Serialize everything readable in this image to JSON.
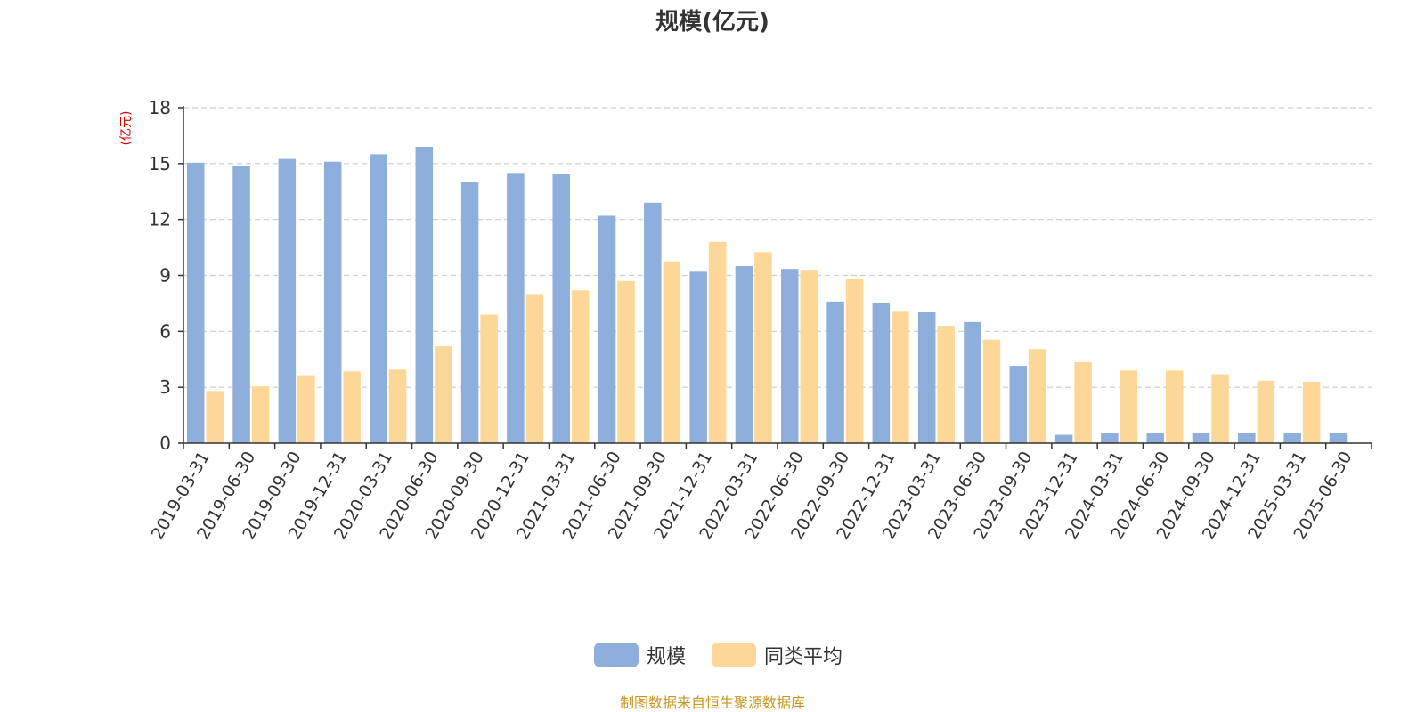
{
  "chart_data": {
    "type": "bar",
    "title": "规模(亿元)",
    "ylabel": "(亿元)",
    "ylim": [
      0,
      18
    ],
    "yticks": [
      "0",
      "3",
      "6",
      "9",
      "12",
      "15",
      "18"
    ],
    "grid": true,
    "legend_position": "bottom-center",
    "categories": [
      "2019-03-31",
      "2019-06-30",
      "2019-09-30",
      "2019-12-31",
      "2020-03-31",
      "2020-06-30",
      "2020-09-30",
      "2020-12-31",
      "2021-03-31",
      "2021-06-30",
      "2021-09-30",
      "2021-12-31",
      "2022-03-31",
      "2022-06-30",
      "2022-09-30",
      "2022-12-31",
      "2023-03-31",
      "2023-06-30",
      "2023-09-30",
      "2023-12-31",
      "2024-03-31",
      "2024-06-30",
      "2024-09-30",
      "2024-12-31",
      "2025-03-31",
      "2025-06-30"
    ],
    "series": [
      {
        "name": "规模",
        "color": "#8eaedb",
        "values": [
          15.05,
          14.85,
          15.25,
          15.1,
          15.5,
          15.9,
          14.0,
          14.5,
          14.45,
          12.2,
          12.9,
          9.2,
          9.5,
          9.35,
          7.6,
          7.5,
          7.05,
          6.5,
          4.15,
          0.45,
          0.55,
          0.55,
          0.55,
          0.55,
          0.55,
          0.55
        ]
      },
      {
        "name": "同类平均",
        "color": "#fdd797",
        "values": [
          2.8,
          3.05,
          3.65,
          3.85,
          3.95,
          5.2,
          6.9,
          8.0,
          8.2,
          8.7,
          9.75,
          10.8,
          10.25,
          9.3,
          8.8,
          7.1,
          6.3,
          5.55,
          5.05,
          4.35,
          3.9,
          3.9,
          3.7,
          3.35,
          3.3,
          null
        ]
      }
    ]
  },
  "source_text": "制图数据来自恒生聚源数据库"
}
